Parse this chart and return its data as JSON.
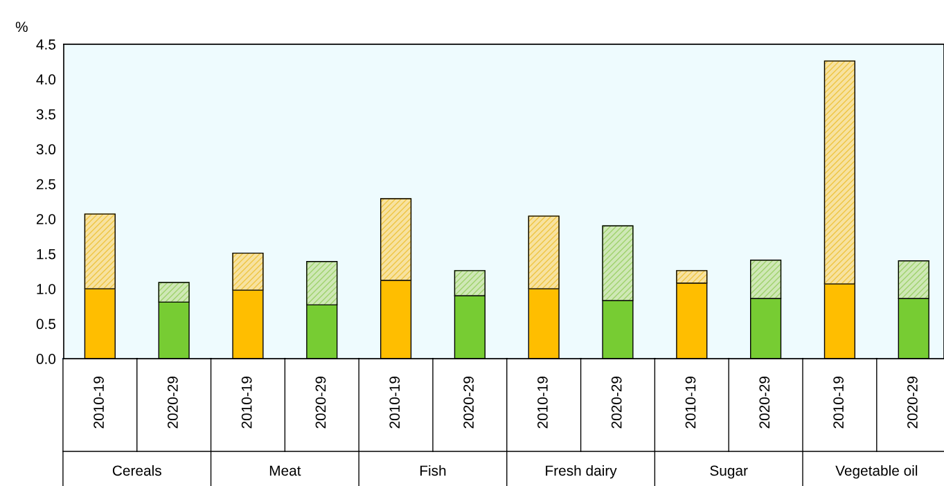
{
  "chart_data": {
    "type": "bar",
    "stacked": true,
    "ylabel": "%",
    "categories": [
      "2010-19",
      "2020-29",
      "2010-19",
      "2020-29",
      "2010-19",
      "2020-29",
      "2010-19",
      "2020-29",
      "2010-19",
      "2020-29",
      "2010-19",
      "2020-29"
    ],
    "series": [
      {
        "colors": [
          "#ffbe00",
          "#77cc33",
          "#ffbe00",
          "#77cc33",
          "#ffbe00",
          "#77cc33",
          "#ffbe00",
          "#77cc33",
          "#ffbe00",
          "#77cc33",
          "#ffbe00",
          "#77cc33"
        ],
        "values": [
          1.0,
          0.81,
          0.98,
          0.77,
          1.12,
          0.9,
          1.0,
          0.83,
          1.08,
          0.86,
          1.07,
          0.86
        ]
      },
      {
        "colors": [
          "#efc541",
          "#9fd26c",
          "#efc541",
          "#9fd26c",
          "#efc541",
          "#9fd26c",
          "#efc541",
          "#9fd26c",
          "#efc541",
          "#9fd26c",
          "#efc541",
          "#9fd26c"
        ],
        "values": [
          1.07,
          0.28,
          0.53,
          0.62,
          1.17,
          0.36,
          1.04,
          1.07,
          0.18,
          0.55,
          3.19,
          0.54
        ]
      }
    ],
    "annotations": [
      "Cereals",
      "Meat",
      "Fish",
      "Fresh dairy",
      "Sugar",
      "Vegetable oil"
    ],
    "ylim": [
      0,
      4.5
    ],
    "yticks": [
      {
        "value": 0,
        "label": "0.0"
      },
      {
        "value": 0.5,
        "label": "0.5"
      },
      {
        "value": 1,
        "label": "1.0"
      },
      {
        "value": 1.5,
        "label": "1.5"
      },
      {
        "value": 2,
        "label": "2.0"
      },
      {
        "value": 2.5,
        "label": "2.5"
      },
      {
        "value": 3,
        "label": "3.0"
      },
      {
        "value": 3.5,
        "label": "3.5"
      },
      {
        "value": 4,
        "label": "4.0"
      },
      {
        "value": 4.5,
        "label": "4.5"
      }
    ],
    "grid": false,
    "legend": false
  }
}
